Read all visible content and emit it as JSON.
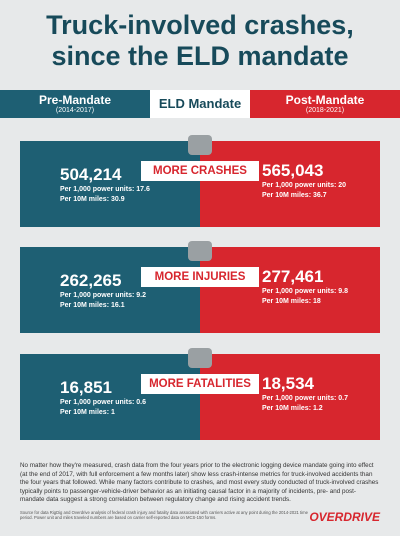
{
  "header": {
    "title_lines": [
      "Truck-involved crashes,",
      "since the ELD mandate"
    ]
  },
  "banner": {
    "pre": {
      "label": "Pre-Mandate",
      "years": "(2014-2017)"
    },
    "center": "ELD Mandate",
    "post": {
      "label": "Post-Mandate",
      "years": "(2018-2021)"
    }
  },
  "panels": [
    {
      "label": "MORE CRASHES",
      "pre": {
        "total": "504,214",
        "per_units": "Per 1,000 power units: 17.6",
        "per_miles": "Per 10M miles: 30.9"
      },
      "post": {
        "total": "565,043",
        "per_units": "Per 1,000 power units: 20",
        "per_miles": "Per 10M miles: 36.7"
      }
    },
    {
      "label": "MORE INJURIES",
      "pre": {
        "total": "262,265",
        "per_units": "Per 1,000 power units: 9.2",
        "per_miles": "Per 10M miles: 16.1"
      },
      "post": {
        "total": "277,461",
        "per_units": "Per 1,000 power units: 9.8",
        "per_miles": "Per 10M miles: 18"
      }
    },
    {
      "label": "MORE FATALITIES",
      "pre": {
        "total": "16,851",
        "per_units": "Per 1,000 power units: 0.6",
        "per_miles": "Per 10M miles: 1"
      },
      "post": {
        "total": "18,534",
        "per_units": "Per 1,000 power units: 0.7",
        "per_miles": "Per 10M miles: 1.2"
      }
    }
  ],
  "footer": {
    "body": "No matter how they're measured, crash data from the four years prior to the electronic logging device mandate going into effect (at the end of 2017, with full enforcement a few months later) show less crash-intense metrics for truck-involved accidents than the four years that followed. While many factors contribute to crashes, and most every study conducted of truck-involved crashes typically points to passenger-vehicle-driver behavior as an initiating causal factor in a majority of incidents, pre- and post-mandate data suggest a strong correlation between regulatory change and rising accident trends.",
    "source": "Source for data RigDig and Overdrive analysis of federal crash injury and fatality data associated with carriers active at any point during the 2014-2021 time period. Power unit and miles traveled numbers are based on carrier self-reported data on MCS-150 forms.",
    "logo": "OVERDRIVE"
  }
}
